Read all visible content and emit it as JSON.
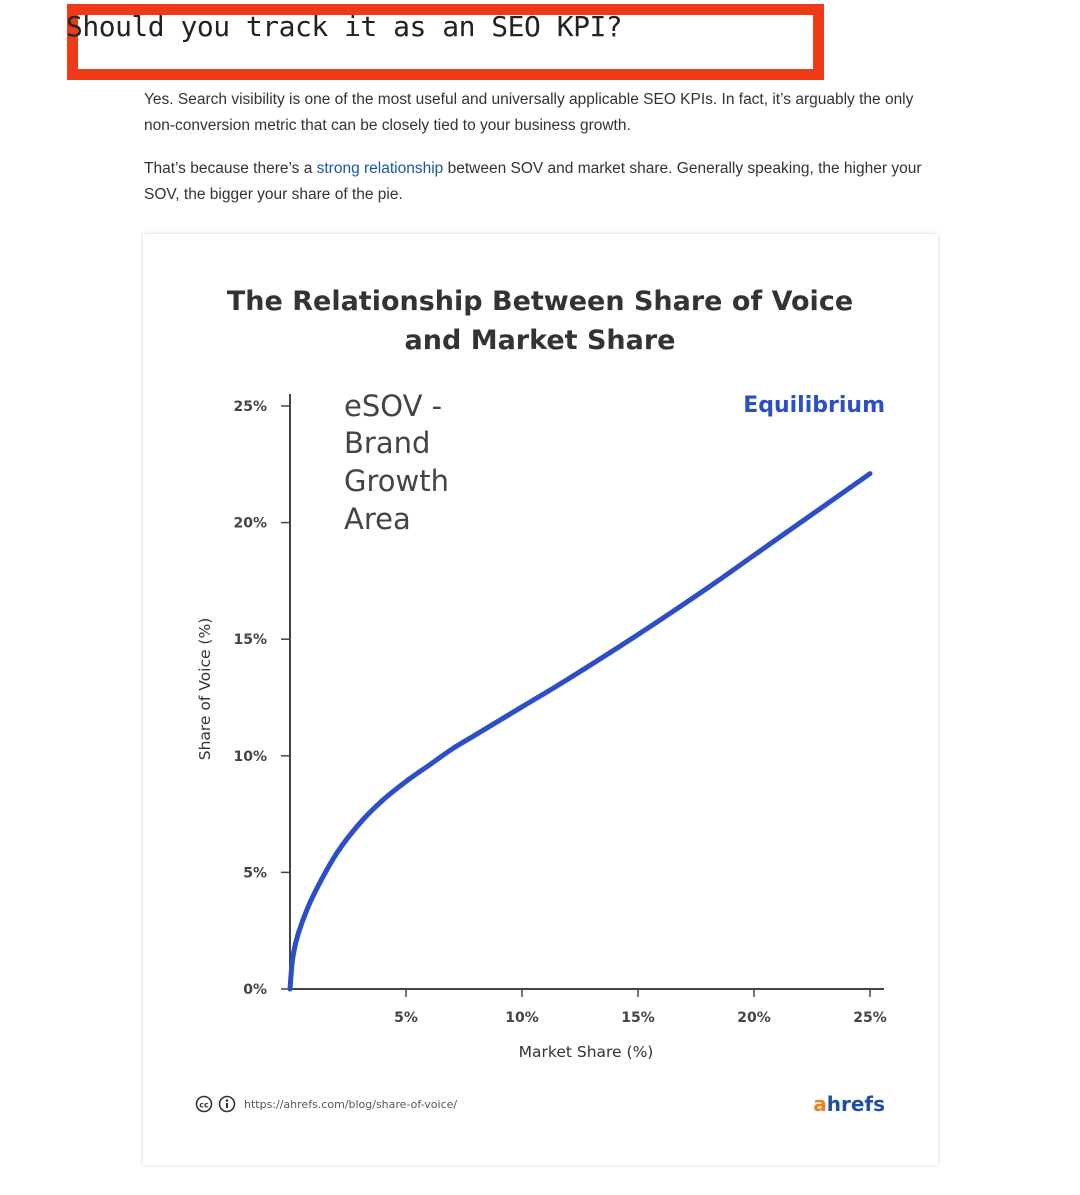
{
  "article": {
    "heading": "Should you track it as an SEO KPI?",
    "p1": "Yes. Search visibility is one of the most useful and universally applicable SEO KPIs. In fact, it’s arguably the only non-conversion metric that can be closely tied to your business growth.",
    "p2_before": "That’s because there’s a ",
    "p2_link": "strong relationship",
    "p2_after": " between SOV and market share. Generally speaking, the higher your SOV, the bigger your share of the pie."
  },
  "colors": {
    "highlight_border": "#ee3a18",
    "link": "#1a56a8",
    "curve": "#2c4fc8",
    "brand_a": "#f27f1b",
    "brand_rest": "#1f4fa0"
  },
  "chart_data": {
    "type": "line",
    "title_line1": "The Relationship Between Share of Voice",
    "title_line2": "and Market Share",
    "xlabel": "Market Share (%)",
    "ylabel": "Share of Voice (%)",
    "xlim": [
      0,
      25
    ],
    "ylim": [
      0,
      25
    ],
    "x_ticks": [
      "5%",
      "10%",
      "15%",
      "20%",
      "25%"
    ],
    "y_ticks": [
      "0%",
      "5%",
      "10%",
      "15%",
      "20%",
      "25%"
    ],
    "series": [
      {
        "name": "Equilibrium",
        "x": [
          0,
          0.1,
          0.25,
          0.5,
          1,
          2,
          3,
          4,
          5,
          6,
          7,
          8,
          10,
          12,
          15,
          18,
          20,
          22,
          25
        ],
        "y": [
          0,
          1.2,
          2.0,
          2.8,
          4.0,
          5.8,
          7.1,
          8.1,
          8.9,
          9.6,
          10.3,
          10.9,
          12.1,
          13.3,
          15.2,
          17.2,
          18.6,
          20.0,
          22.1
        ]
      }
    ],
    "annotations": [
      "eSOV -",
      "Brand",
      "Growth",
      "Area"
    ],
    "grid": false,
    "legend": "none"
  },
  "footer": {
    "url": "https://ahrefs.com/blog/share-of-voice/",
    "brand_first": "a",
    "brand_rest": "hrefs"
  }
}
